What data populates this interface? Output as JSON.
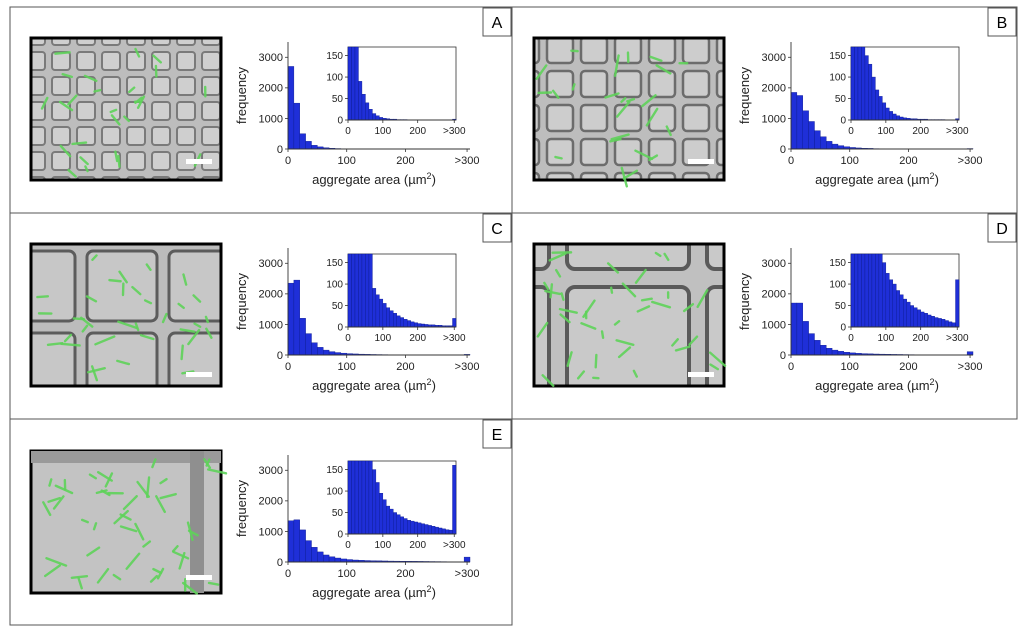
{
  "figure": {
    "x_label": "aggregate area (µm",
    "x_label_sup": "2",
    "x_label_close": ")",
    "y_label": "frequency",
    "main_y_ticks": [
      "0",
      "1000",
      "2000",
      "3000"
    ],
    "main_x_ticks": [
      "0",
      "100",
      "200",
      ">300"
    ],
    "inset_y_ticks": [
      "0",
      "50",
      "100",
      "150"
    ],
    "inset_x_ticks": [
      "0",
      "100",
      "200",
      ">300"
    ],
    "colors": {
      "bar": "#1f2fd8",
      "bar_edge": "#0a1a90",
      "cell": "#5fd35a",
      "micrograph_bg": "#b9b9b9",
      "frame": "#000000"
    }
  },
  "chart_data": [
    {
      "panel": "A",
      "type": "bar",
      "title": "A",
      "xlabel": "aggregate area (µm2)",
      "ylabel": "frequency",
      "categories_note": "bins of 10 µm2 from 0 to >300",
      "xlim": [
        0,
        310
      ],
      "ylim": [
        0,
        3500
      ],
      "values": [
        2700,
        1500,
        500,
        250,
        120,
        70,
        40,
        25,
        15,
        10,
        8,
        6,
        4,
        3,
        2,
        2,
        1,
        1,
        1,
        1,
        0,
        0,
        0,
        0,
        0,
        0,
        0,
        0,
        0,
        0,
        0
      ],
      "inset": {
        "xlim": [
          0,
          310
        ],
        "ylim": [
          0,
          170
        ],
        "values": [
          170,
          170,
          170,
          90,
          60,
          40,
          25,
          15,
          10,
          6,
          4,
          3,
          2,
          2,
          1,
          1,
          1,
          0,
          0,
          0,
          0,
          0,
          0,
          0,
          0,
          0,
          0,
          0,
          0,
          0,
          2
        ]
      }
    },
    {
      "panel": "B",
      "type": "bar",
      "title": "B",
      "xlabel": "aggregate area (µm2)",
      "ylabel": "frequency",
      "xlim": [
        0,
        310
      ],
      "ylim": [
        0,
        3500
      ],
      "values": [
        1850,
        1750,
        1250,
        900,
        600,
        400,
        250,
        160,
        110,
        75,
        50,
        35,
        25,
        20,
        12,
        10,
        8,
        6,
        5,
        4,
        3,
        3,
        2,
        2,
        1,
        1,
        1,
        1,
        0,
        0,
        15
      ],
      "inset": {
        "xlim": [
          0,
          310
        ],
        "ylim": [
          0,
          170
        ],
        "values": [
          170,
          170,
          170,
          170,
          150,
          130,
          100,
          70,
          55,
          40,
          28,
          20,
          14,
          10,
          7,
          5,
          4,
          3,
          3,
          2,
          2,
          2,
          1,
          1,
          1,
          1,
          1,
          0,
          0,
          0,
          3
        ]
      }
    },
    {
      "panel": "C",
      "type": "bar",
      "title": "C",
      "xlabel": "aggregate area (µm2)",
      "ylabel": "frequency",
      "xlim": [
        0,
        310
      ],
      "ylim": [
        0,
        3500
      ],
      "values": [
        2350,
        2450,
        1200,
        700,
        400,
        250,
        160,
        110,
        80,
        60,
        45,
        35,
        28,
        22,
        18,
        15,
        12,
        10,
        8,
        7,
        6,
        5,
        4,
        4,
        3,
        3,
        2,
        2,
        2,
        2,
        20
      ],
      "inset": {
        "xlim": [
          0,
          310
        ],
        "ylim": [
          0,
          170
        ],
        "values": [
          170,
          170,
          170,
          170,
          170,
          170,
          170,
          90,
          75,
          65,
          55,
          45,
          38,
          32,
          26,
          22,
          18,
          15,
          12,
          10,
          8,
          7,
          6,
          5,
          5,
          4,
          4,
          3,
          3,
          3,
          20
        ]
      }
    },
    {
      "panel": "D",
      "type": "bar",
      "title": "D",
      "xlabel": "aggregate area (µm2)",
      "ylabel": "frequency",
      "xlim": [
        0,
        310
      ],
      "ylim": [
        0,
        3500
      ],
      "values": [
        1700,
        1700,
        1100,
        700,
        480,
        320,
        220,
        160,
        120,
        90,
        70,
        55,
        45,
        38,
        32,
        28,
        24,
        20,
        18,
        15,
        12,
        10,
        9,
        8,
        7,
        6,
        5,
        4,
        3,
        3,
        110
      ],
      "inset": {
        "xlim": [
          0,
          310
        ],
        "ylim": [
          0,
          170
        ],
        "values": [
          170,
          170,
          170,
          170,
          170,
          170,
          170,
          170,
          170,
          150,
          125,
          110,
          100,
          85,
          75,
          65,
          58,
          50,
          45,
          40,
          35,
          32,
          28,
          25,
          22,
          20,
          18,
          15,
          12,
          10,
          110
        ]
      }
    },
    {
      "panel": "E",
      "type": "bar",
      "title": "E",
      "xlabel": "aggregate area (µm2)",
      "ylabel": "frequency",
      "xlim": [
        0,
        310
      ],
      "ylim": [
        0,
        3500
      ],
      "values": [
        1350,
        1380,
        1050,
        700,
        480,
        330,
        230,
        170,
        130,
        100,
        80,
        65,
        55,
        48,
        42,
        38,
        34,
        30,
        28,
        26,
        24,
        22,
        20,
        18,
        16,
        14,
        12,
        10,
        9,
        8,
        160
      ],
      "inset": {
        "xlim": [
          0,
          310
        ],
        "ylim": [
          0,
          170
        ],
        "values": [
          170,
          170,
          170,
          170,
          170,
          170,
          170,
          150,
          120,
          95,
          80,
          65,
          58,
          50,
          45,
          40,
          36,
          32,
          30,
          28,
          26,
          24,
          22,
          20,
          18,
          16,
          14,
          12,
          10,
          9,
          160
        ]
      }
    }
  ]
}
